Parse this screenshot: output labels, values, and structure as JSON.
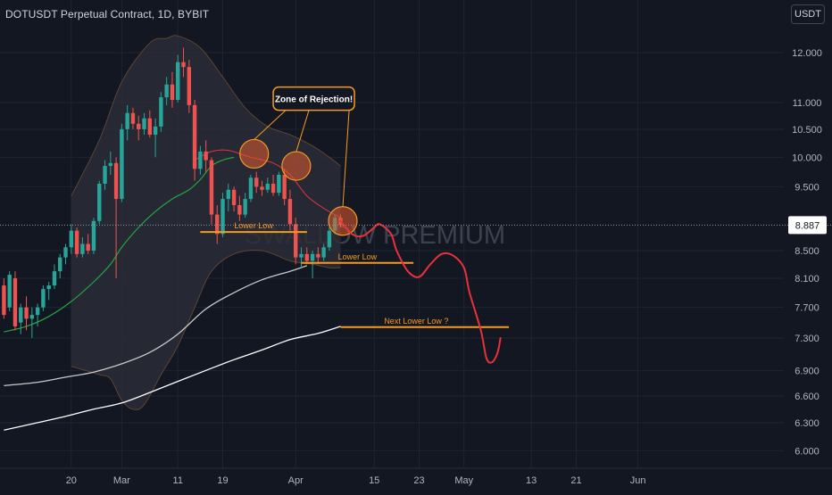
{
  "header": {
    "title": "DOTUSDT Perpetual Contract, 1D, BYBIT"
  },
  "currency_button": "USDT",
  "watermark": "SWALLOW PREMIUM",
  "colors": {
    "background": "#131722",
    "grid": "#1f2430",
    "axis_text": "#b2b5be",
    "up": "#26a69a",
    "down": "#ef5350",
    "annotation": "#f59a23",
    "band_fill": "#2a2d36",
    "band_edge": "#5c4434",
    "mid_band": "#e0343e",
    "ema_short": "#26a641",
    "ema_long": "#c9c9c9",
    "ema_very_long": "#ffffff",
    "projection": "#e8313b",
    "price_label_bg": "#ffffff",
    "price_label_text": "#131722"
  },
  "chart_data": {
    "type": "candlestick",
    "y_scale": "log",
    "ylim": [
      5.82,
      12.55
    ],
    "y_ticks": [
      "12.000",
      "11.000",
      "10.500",
      "10.000",
      "9.500",
      "8.500",
      "8.100",
      "7.700",
      "7.300",
      "6.900",
      "6.600",
      "6.300",
      "6.000"
    ],
    "y_tick_values": [
      12.0,
      11.0,
      10.5,
      10.0,
      9.5,
      8.5,
      8.1,
      7.7,
      7.3,
      6.9,
      6.6,
      6.3,
      6.0
    ],
    "x_range": [
      -21.7,
      118.0
    ],
    "x_ticks": [
      {
        "label": "20",
        "day": -9
      },
      {
        "label": "Mar",
        "day": 0
      },
      {
        "label": "11",
        "day": 10
      },
      {
        "label": "19",
        "day": 18
      },
      {
        "label": "Apr",
        "day": 31
      },
      {
        "label": "15",
        "day": 45
      },
      {
        "label": "23",
        "day": 53
      },
      {
        "label": "May",
        "day": 61
      },
      {
        "label": "13",
        "day": 73
      },
      {
        "label": "21",
        "day": 81
      },
      {
        "label": "Jun",
        "day": 92
      }
    ],
    "current_price": "8.887",
    "current_price_value": 8.887,
    "candles": [
      {
        "day": -21,
        "o": 8.0,
        "h": 8.1,
        "l": 7.55,
        "c": 7.6
      },
      {
        "day": -20,
        "o": 7.7,
        "h": 8.2,
        "l": 7.65,
        "c": 8.15
      },
      {
        "day": -19,
        "o": 8.1,
        "h": 8.2,
        "l": 7.4,
        "c": 7.45
      },
      {
        "day": -18,
        "o": 7.5,
        "h": 7.75,
        "l": 7.35,
        "c": 7.7
      },
      {
        "day": -17,
        "o": 7.7,
        "h": 7.85,
        "l": 7.4,
        "c": 7.55
      },
      {
        "day": -16,
        "o": 7.55,
        "h": 7.7,
        "l": 7.3,
        "c": 7.6
      },
      {
        "day": -15,
        "o": 7.6,
        "h": 7.75,
        "l": 7.45,
        "c": 7.7
      },
      {
        "day": -14,
        "o": 7.7,
        "h": 8.0,
        "l": 7.65,
        "c": 7.95
      },
      {
        "day": -13,
        "o": 7.95,
        "h": 8.05,
        "l": 7.8,
        "c": 8.0
      },
      {
        "day": -12,
        "o": 8.0,
        "h": 8.3,
        "l": 7.95,
        "c": 8.2
      },
      {
        "day": -11,
        "o": 8.2,
        "h": 8.45,
        "l": 8.1,
        "c": 8.4
      },
      {
        "day": -10,
        "o": 8.4,
        "h": 8.6,
        "l": 8.3,
        "c": 8.55
      },
      {
        "day": -9,
        "o": 8.55,
        "h": 8.9,
        "l": 8.45,
        "c": 8.8
      },
      {
        "day": -8,
        "o": 8.8,
        "h": 8.85,
        "l": 8.4,
        "c": 8.45
      },
      {
        "day": -7,
        "o": 8.45,
        "h": 8.7,
        "l": 8.4,
        "c": 8.6
      },
      {
        "day": -6,
        "o": 8.6,
        "h": 8.75,
        "l": 8.45,
        "c": 8.5
      },
      {
        "day": -5,
        "o": 8.5,
        "h": 9.0,
        "l": 8.45,
        "c": 8.95
      },
      {
        "day": -4,
        "o": 8.95,
        "h": 9.6,
        "l": 8.9,
        "c": 9.55
      },
      {
        "day": -3,
        "o": 9.55,
        "h": 9.95,
        "l": 9.45,
        "c": 9.85
      },
      {
        "day": -2,
        "o": 9.85,
        "h": 10.1,
        "l": 9.7,
        "c": 9.9
      },
      {
        "day": -1,
        "o": 9.9,
        "h": 10.0,
        "l": 8.1,
        "c": 9.3
      },
      {
        "day": 0,
        "o": 9.3,
        "h": 10.6,
        "l": 9.25,
        "c": 10.5
      },
      {
        "day": 1,
        "o": 10.5,
        "h": 10.95,
        "l": 10.3,
        "c": 10.8
      },
      {
        "day": 2,
        "o": 10.8,
        "h": 10.9,
        "l": 10.5,
        "c": 10.6
      },
      {
        "day": 3,
        "o": 10.6,
        "h": 10.75,
        "l": 10.3,
        "c": 10.5
      },
      {
        "day": 4,
        "o": 10.5,
        "h": 10.8,
        "l": 10.4,
        "c": 10.7
      },
      {
        "day": 5,
        "o": 10.7,
        "h": 10.85,
        "l": 10.35,
        "c": 10.4
      },
      {
        "day": 6,
        "o": 10.4,
        "h": 10.7,
        "l": 10.0,
        "c": 10.55
      },
      {
        "day": 7,
        "o": 10.55,
        "h": 11.2,
        "l": 10.45,
        "c": 11.1
      },
      {
        "day": 8,
        "o": 11.1,
        "h": 11.5,
        "l": 10.95,
        "c": 11.35
      },
      {
        "day": 9,
        "o": 11.35,
        "h": 11.6,
        "l": 10.9,
        "c": 11.05
      },
      {
        "day": 10,
        "o": 11.05,
        "h": 11.95,
        "l": 11.0,
        "c": 11.8
      },
      {
        "day": 11,
        "o": 11.8,
        "h": 12.1,
        "l": 11.5,
        "c": 11.7
      },
      {
        "day": 12,
        "o": 11.7,
        "h": 11.85,
        "l": 10.8,
        "c": 10.95
      },
      {
        "day": 13,
        "o": 10.95,
        "h": 11.05,
        "l": 9.6,
        "c": 9.8
      },
      {
        "day": 14,
        "o": 9.8,
        "h": 10.2,
        "l": 9.7,
        "c": 10.1
      },
      {
        "day": 15,
        "o": 10.1,
        "h": 10.3,
        "l": 9.75,
        "c": 9.95
      },
      {
        "day": 16,
        "o": 9.95,
        "h": 10.0,
        "l": 8.9,
        "c": 9.05
      },
      {
        "day": 17,
        "o": 9.05,
        "h": 9.2,
        "l": 8.6,
        "c": 8.75
      },
      {
        "day": 18,
        "o": 8.75,
        "h": 9.4,
        "l": 8.7,
        "c": 9.3
      },
      {
        "day": 19,
        "o": 9.3,
        "h": 9.55,
        "l": 9.1,
        "c": 9.45
      },
      {
        "day": 20,
        "o": 9.45,
        "h": 9.5,
        "l": 9.1,
        "c": 9.2
      },
      {
        "day": 21,
        "o": 9.2,
        "h": 9.35,
        "l": 8.95,
        "c": 9.05
      },
      {
        "day": 22,
        "o": 9.05,
        "h": 9.4,
        "l": 9.0,
        "c": 9.3
      },
      {
        "day": 23,
        "o": 9.3,
        "h": 9.7,
        "l": 9.25,
        "c": 9.65
      },
      {
        "day": 24,
        "o": 9.65,
        "h": 9.75,
        "l": 9.4,
        "c": 9.5
      },
      {
        "day": 25,
        "o": 9.5,
        "h": 9.6,
        "l": 9.35,
        "c": 9.45
      },
      {
        "day": 26,
        "o": 9.45,
        "h": 9.65,
        "l": 9.4,
        "c": 9.55
      },
      {
        "day": 27,
        "o": 9.55,
        "h": 9.7,
        "l": 9.35,
        "c": 9.4
      },
      {
        "day": 28,
        "o": 9.4,
        "h": 9.75,
        "l": 9.35,
        "c": 9.7
      },
      {
        "day": 29,
        "o": 9.7,
        "h": 9.8,
        "l": 9.2,
        "c": 9.3
      },
      {
        "day": 30,
        "o": 9.3,
        "h": 9.45,
        "l": 8.8,
        "c": 8.9
      },
      {
        "day": 31,
        "o": 8.9,
        "h": 9.0,
        "l": 8.3,
        "c": 8.4
      },
      {
        "day": 32,
        "o": 8.4,
        "h": 8.55,
        "l": 8.25,
        "c": 8.45
      },
      {
        "day": 33,
        "o": 8.45,
        "h": 8.55,
        "l": 8.3,
        "c": 8.35
      },
      {
        "day": 34,
        "o": 8.35,
        "h": 8.5,
        "l": 8.1,
        "c": 8.45
      },
      {
        "day": 35,
        "o": 8.45,
        "h": 8.55,
        "l": 8.3,
        "c": 8.4
      },
      {
        "day": 36,
        "o": 8.4,
        "h": 8.6,
        "l": 8.35,
        "c": 8.55
      },
      {
        "day": 37,
        "o": 8.55,
        "h": 8.85,
        "l": 8.5,
        "c": 8.8
      },
      {
        "day": 38,
        "o": 8.8,
        "h": 9.05,
        "l": 8.75,
        "c": 9.0
      },
      {
        "day": 39,
        "o": 9.0,
        "h": 9.05,
        "l": 8.85,
        "c": 8.887
      }
    ],
    "indicators": {
      "band_upper": [
        [
          -9,
          9.35
        ],
        [
          -4,
          10.3
        ],
        [
          0,
          11.4
        ],
        [
          5,
          12.2
        ],
        [
          8,
          12.3
        ],
        [
          10,
          12.35
        ],
        [
          14,
          12.1
        ],
        [
          18,
          11.5
        ],
        [
          22,
          10.9
        ],
        [
          26,
          10.55
        ],
        [
          30,
          10.4
        ],
        [
          34,
          10.2
        ],
        [
          37,
          10.0
        ],
        [
          39,
          9.85
        ]
      ],
      "band_lower": [
        [
          -9,
          6.95
        ],
        [
          -4,
          6.85
        ],
        [
          -2,
          6.8
        ],
        [
          0,
          6.55
        ],
        [
          2,
          6.45
        ],
        [
          4,
          6.5
        ],
        [
          7,
          6.85
        ],
        [
          10,
          7.2
        ],
        [
          13,
          7.7
        ],
        [
          16,
          8.2
        ],
        [
          20,
          8.45
        ],
        [
          25,
          8.5
        ],
        [
          30,
          8.35
        ],
        [
          34,
          8.3
        ],
        [
          37,
          8.25
        ],
        [
          39,
          8.25
        ]
      ],
      "band_mid": [
        [
          13,
          9.95
        ],
        [
          16,
          10.1
        ],
        [
          19,
          10.12
        ],
        [
          23,
          10.0
        ],
        [
          27,
          9.9
        ],
        [
          30,
          9.7
        ],
        [
          33,
          9.35
        ],
        [
          36,
          9.15
        ],
        [
          39,
          9.0
        ]
      ],
      "ema_short": [
        [
          -21,
          7.38
        ],
        [
          -17,
          7.45
        ],
        [
          -13,
          7.58
        ],
        [
          -9,
          7.78
        ],
        [
          -5,
          8.05
        ],
        [
          -2,
          8.3
        ],
        [
          0,
          8.55
        ],
        [
          3,
          8.85
        ],
        [
          6,
          9.1
        ],
        [
          9,
          9.3
        ],
        [
          12,
          9.45
        ],
        [
          14,
          9.62
        ],
        [
          16,
          9.85
        ],
        [
          18,
          9.95
        ],
        [
          20,
          10.0
        ]
      ],
      "ema_long": [
        [
          -21,
          6.72
        ],
        [
          -15,
          6.76
        ],
        [
          -10,
          6.82
        ],
        [
          -5,
          6.88
        ],
        [
          0,
          6.98
        ],
        [
          5,
          7.12
        ],
        [
          10,
          7.35
        ],
        [
          15,
          7.68
        ],
        [
          20,
          7.9
        ],
        [
          25,
          8.08
        ],
        [
          30,
          8.2
        ],
        [
          33,
          8.28
        ]
      ],
      "ema_very_long": [
        [
          -21,
          6.22
        ],
        [
          -15,
          6.3
        ],
        [
          -10,
          6.37
        ],
        [
          -5,
          6.45
        ],
        [
          0,
          6.52
        ],
        [
          5,
          6.64
        ],
        [
          10,
          6.77
        ],
        [
          15,
          6.9
        ],
        [
          20,
          7.03
        ],
        [
          25,
          7.15
        ],
        [
          30,
          7.28
        ],
        [
          35,
          7.36
        ],
        [
          39,
          7.45
        ]
      ],
      "projection": [
        [
          39,
          8.95
        ],
        [
          41,
          8.75
        ],
        [
          43,
          8.72
        ],
        [
          45,
          8.85
        ],
        [
          46,
          8.9
        ],
        [
          48,
          8.75
        ],
        [
          49,
          8.5
        ],
        [
          51,
          8.2
        ],
        [
          53,
          8.12
        ],
        [
          55,
          8.3
        ],
        [
          57,
          8.45
        ],
        [
          59,
          8.43
        ],
        [
          61,
          8.25
        ],
        [
          62,
          7.9
        ],
        [
          64,
          7.4
        ],
        [
          65,
          7.05
        ],
        [
          66,
          7.0
        ],
        [
          67,
          7.12
        ],
        [
          67.5,
          7.3
        ]
      ]
    },
    "annotations": {
      "zone_label": "Zone of Rejection!",
      "lower_low_1": "Lower Low",
      "lower_low_1_price": 8.78,
      "lower_low_1_days": [
        14,
        33
      ],
      "lower_low_2": "Lower Low",
      "lower_low_2_price": 8.32,
      "lower_low_2_days": [
        32,
        52
      ],
      "next_lower_low": "Next Lower Low ?",
      "next_lower_low_price": 7.44,
      "next_lower_low_days": [
        39,
        69
      ],
      "rejection_circles": [
        {
          "day": 23.6,
          "price": 10.06
        },
        {
          "day": 31.1,
          "price": 9.85
        },
        {
          "day": 39.4,
          "price": 8.95
        }
      ]
    }
  }
}
